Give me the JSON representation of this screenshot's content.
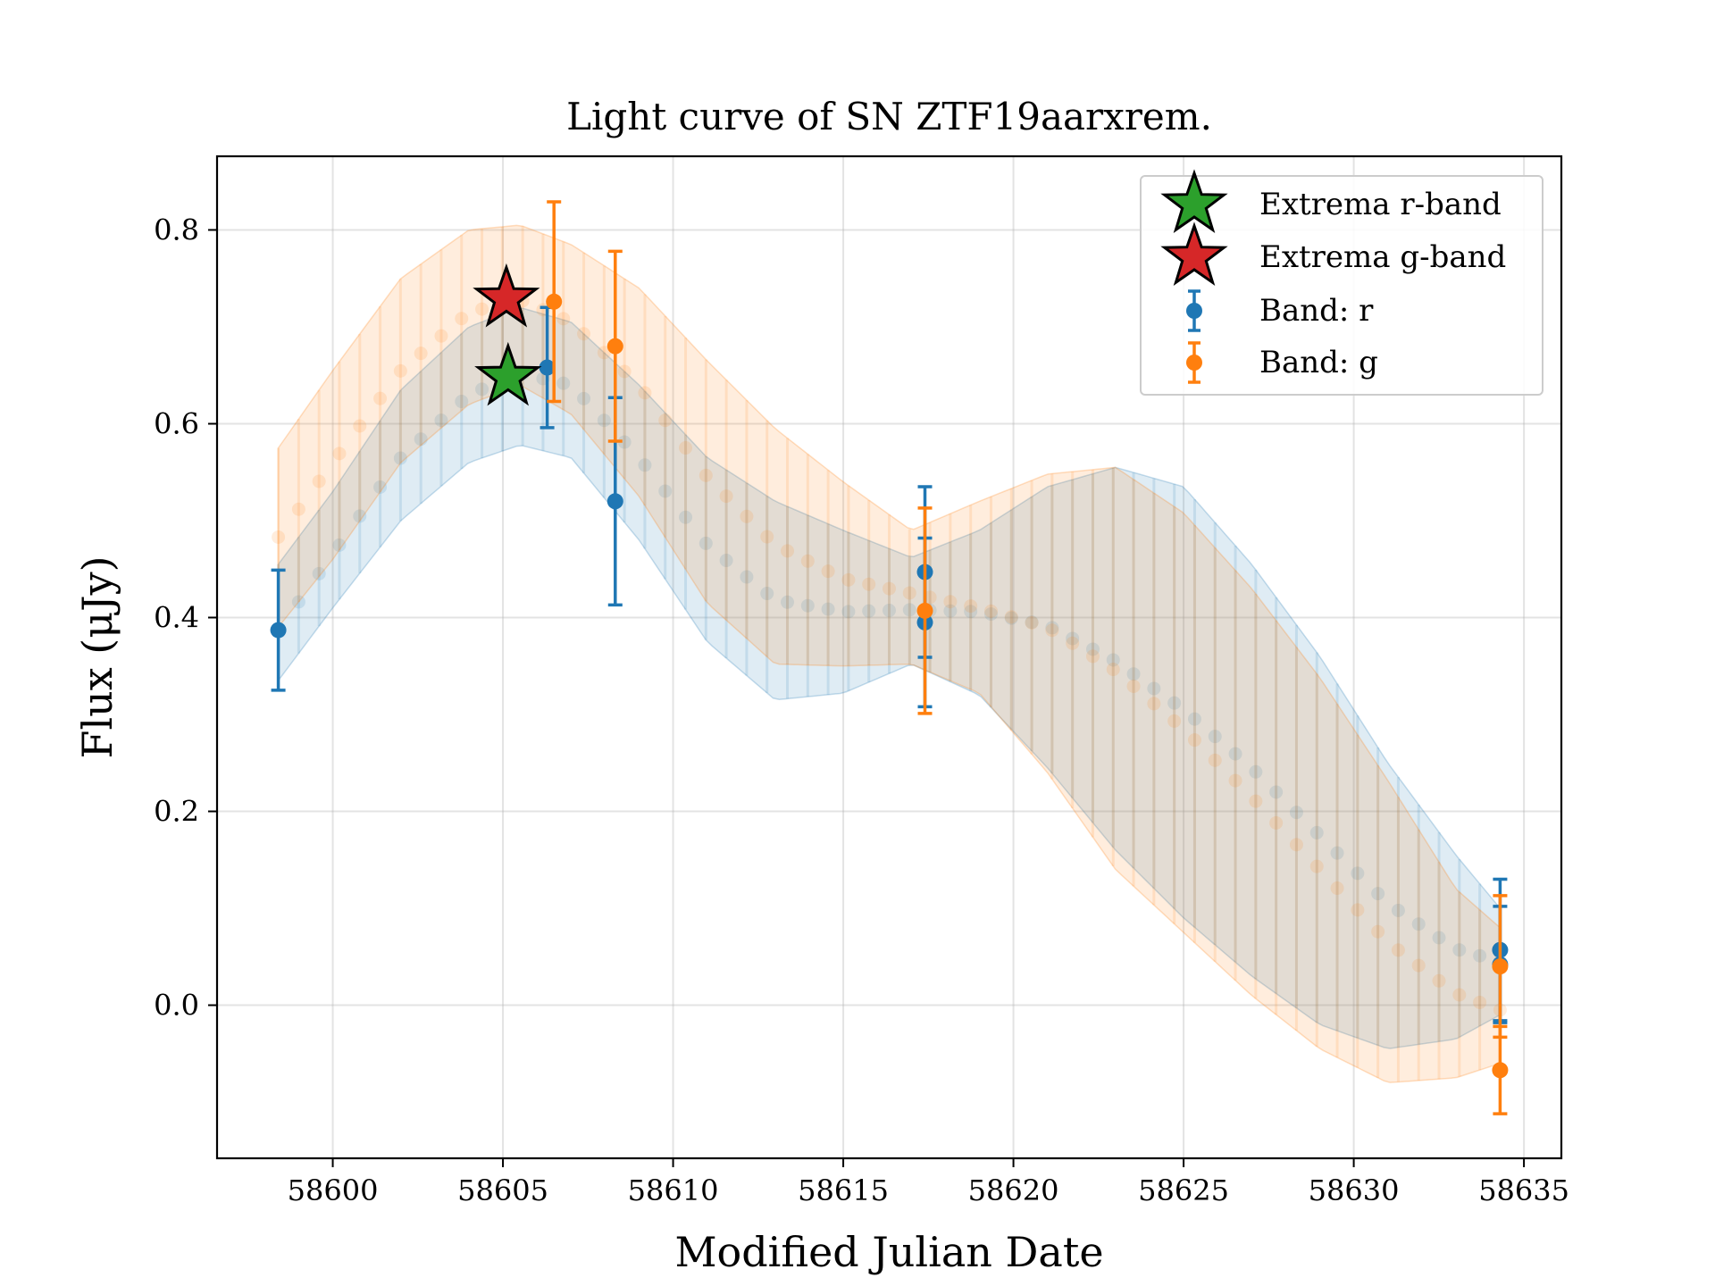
{
  "chart_data": {
    "type": "scatter",
    "title": "Light curve of SN ZTF19aarxrem.",
    "xlabel": "Modified Julian Date",
    "ylabel": "Flux (μJy)",
    "xlim": [
      58596.6,
      58636.1
    ],
    "ylim": [
      -0.158,
      0.876
    ],
    "xticks": [
      58600,
      58605,
      58610,
      58615,
      58620,
      58625,
      58630,
      58635
    ],
    "yticks": [
      0.0,
      0.2,
      0.4,
      0.6,
      0.8
    ],
    "grid": true,
    "legend_position": "top-right",
    "colors": {
      "r": "#1f77b4",
      "g": "#ff7f0e",
      "extrema_r": "#2ca02c",
      "extrema_g": "#d62728"
    },
    "series": [
      {
        "name": "Band: r",
        "band": "r",
        "x": [
          58598.4,
          58606.3,
          58608.3,
          58617.4,
          58617.4,
          58634.3,
          58634.3
        ],
        "y": [
          0.387,
          0.658,
          0.52,
          0.447,
          0.395,
          0.057,
          0.042
        ],
        "yerr": [
          0.062,
          0.062,
          0.107,
          0.088,
          0.087,
          0.073,
          0.06
        ]
      },
      {
        "name": "Band: g",
        "band": "g",
        "x": [
          58606.5,
          58608.3,
          58617.4,
          58634.3,
          58634.3
        ],
        "y": [
          0.726,
          0.68,
          0.407,
          -0.067,
          0.04
        ],
        "yerr": [
          0.103,
          0.098,
          0.106,
          0.045,
          0.073
        ]
      }
    ],
    "fit_curves": [
      {
        "band": "r",
        "x": [
          58598.4,
          58600,
          58602,
          58604,
          58605.5,
          58607,
          58609,
          58611,
          58613,
          58615,
          58617,
          58619,
          58621,
          58623,
          58625,
          58627,
          58629,
          58631,
          58633,
          58634.3
        ],
        "y": [
          0.387,
          0.465,
          0.565,
          0.63,
          0.652,
          0.64,
          0.565,
          0.475,
          0.418,
          0.406,
          0.408,
          0.406,
          0.392,
          0.355,
          0.305,
          0.245,
          0.175,
          0.105,
          0.058,
          0.045
        ],
        "lower": [
          0.335,
          0.41,
          0.5,
          0.56,
          0.578,
          0.565,
          0.48,
          0.375,
          0.315,
          0.322,
          0.352,
          0.32,
          0.245,
          0.16,
          0.09,
          0.03,
          -0.02,
          -0.045,
          -0.035,
          -0.01
        ],
        "upper": [
          0.455,
          0.53,
          0.635,
          0.7,
          0.72,
          0.705,
          0.64,
          0.565,
          0.52,
          0.49,
          0.462,
          0.49,
          0.535,
          0.555,
          0.535,
          0.455,
          0.36,
          0.25,
          0.155,
          0.1
        ]
      },
      {
        "band": "g",
        "x": [
          58598.4,
          58600,
          58602,
          58604,
          58605.5,
          58607,
          58609,
          58611,
          58613,
          58615,
          58617,
          58619,
          58621,
          58623,
          58625,
          58627,
          58629,
          58631,
          58633,
          58634.3
        ],
        "y": [
          0.483,
          0.56,
          0.655,
          0.715,
          0.728,
          0.705,
          0.64,
          0.545,
          0.475,
          0.44,
          0.425,
          0.41,
          0.39,
          0.345,
          0.285,
          0.215,
          0.14,
          0.065,
          0.012,
          -0.005
        ],
        "lower": [
          0.39,
          0.46,
          0.56,
          0.62,
          0.64,
          0.61,
          0.525,
          0.415,
          0.352,
          0.35,
          0.352,
          0.322,
          0.24,
          0.14,
          0.075,
          0.01,
          -0.045,
          -0.08,
          -0.075,
          -0.06
        ],
        "upper": [
          0.575,
          0.655,
          0.75,
          0.8,
          0.805,
          0.785,
          0.74,
          0.665,
          0.595,
          0.54,
          0.49,
          0.52,
          0.548,
          0.555,
          0.508,
          0.43,
          0.338,
          0.232,
          0.12,
          0.08
        ]
      }
    ],
    "extrema": [
      {
        "name": "Extrema r-band",
        "band": "r",
        "x": 58605.15,
        "y": 0.648
      },
      {
        "name": "Extrema g-band",
        "band": "g",
        "x": 58605.1,
        "y": 0.729
      }
    ]
  }
}
